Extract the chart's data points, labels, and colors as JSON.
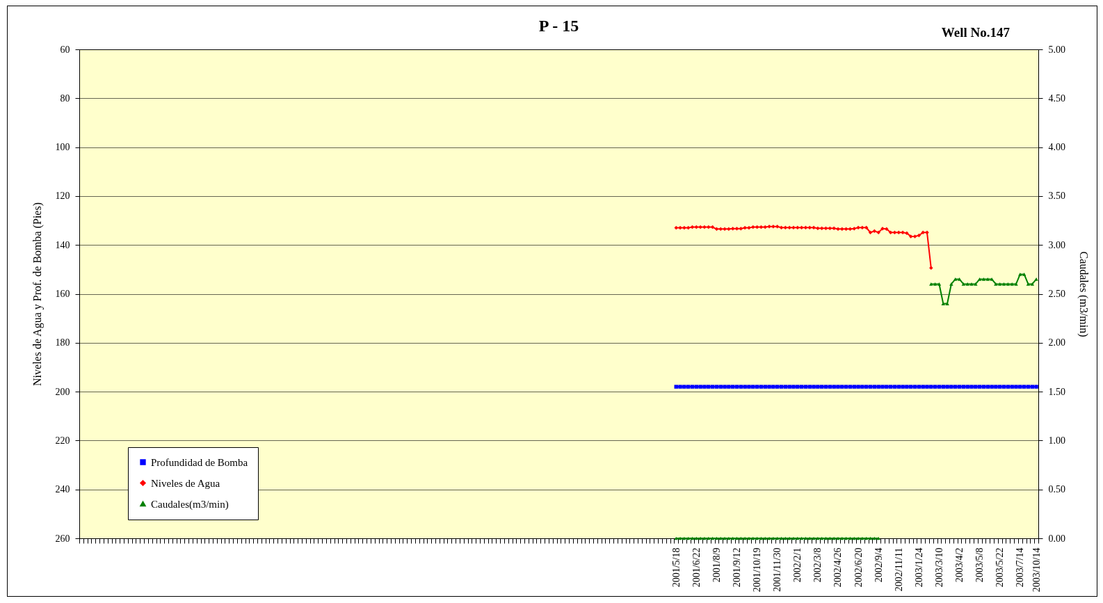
{
  "chart_data": {
    "type": "line",
    "title": "P - 15",
    "annotations": [
      "Well No.147"
    ],
    "ylabel": "Niveles de Agua y Prof. de Bomba (Pies)",
    "y2label": "Caudales (m3/min)",
    "ylim": [
      260,
      60
    ],
    "yticks": [
      60,
      80,
      100,
      120,
      140,
      160,
      180,
      200,
      220,
      240,
      260
    ],
    "y2lim": [
      0,
      5
    ],
    "y2ticks": [
      {
        "value": 0,
        "label": "0.00"
      },
      {
        "value": 0.5,
        "label": "0.50"
      },
      {
        "value": 1,
        "label": "1.00"
      },
      {
        "value": 1.5,
        "label": "1.50"
      },
      {
        "value": 2,
        "label": "2.00"
      },
      {
        "value": 2.5,
        "label": "2.50"
      },
      {
        "value": 3,
        "label": "3.00"
      },
      {
        "value": 3.5,
        "label": "3.50"
      },
      {
        "value": 4,
        "label": "4.00"
      },
      {
        "value": 4.5,
        "label": "4.50"
      },
      {
        "value": 5,
        "label": "5.00"
      }
    ],
    "grid": "y",
    "legend": "bottom left",
    "categories": [
      null,
      null,
      null,
      null,
      null,
      null,
      null,
      null,
      null,
      null,
      null,
      null,
      null,
      null,
      null,
      null,
      null,
      null,
      null,
      null,
      null,
      null,
      null,
      null,
      null,
      null,
      null,
      null,
      null,
      null,
      null,
      null,
      null,
      null,
      null,
      null,
      null,
      null,
      null,
      null,
      null,
      null,
      null,
      null,
      null,
      null,
      null,
      null,
      null,
      null,
      null,
      null,
      null,
      null,
      null,
      null,
      null,
      null,
      null,
      null,
      null,
      null,
      null,
      null,
      null,
      null,
      null,
      null,
      null,
      null,
      null,
      null,
      null,
      null,
      null,
      null,
      null,
      null,
      null,
      null,
      null,
      null,
      null,
      null,
      null,
      null,
      null,
      null,
      null,
      null,
      null,
      null,
      null,
      null,
      null,
      null,
      null,
      null,
      null,
      null,
      null,
      null,
      null,
      null,
      null,
      null,
      null,
      null,
      null,
      null,
      null,
      null,
      null,
      null,
      null,
      null,
      null,
      null,
      null,
      null,
      null,
      null,
      null,
      null,
      null,
      null,
      null,
      null,
      null,
      null,
      null,
      null,
      null,
      null,
      null,
      null,
      null,
      null,
      null,
      null,
      null,
      null,
      null,
      null,
      null,
      null,
      null,
      "2001/5/18",
      null,
      null,
      null,
      null,
      "2001/6/22",
      null,
      null,
      null,
      null,
      "2001/8/9",
      null,
      null,
      null,
      null,
      "2001/9/12",
      null,
      null,
      null,
      null,
      "2001/10/19",
      null,
      null,
      null,
      null,
      "2001/11/30",
      null,
      null,
      null,
      null,
      "2002/2/1",
      null,
      null,
      null,
      null,
      "2002/3/8",
      null,
      null,
      null,
      null,
      "2002/4/26",
      null,
      null,
      null,
      null,
      "2002/6/20",
      null,
      null,
      null,
      null,
      "2002/9/4",
      null,
      null,
      null,
      null,
      "2002/11/11",
      null,
      null,
      null,
      null,
      "2003/1/24",
      null,
      null,
      null,
      null,
      "2003/3/10",
      null,
      null,
      null,
      null,
      "2003/4/2",
      null,
      null,
      null,
      null,
      "2003/5/8",
      null,
      null,
      null,
      null,
      "2003/5/22",
      null,
      null,
      null,
      null,
      "2003/7/14",
      null,
      null,
      null,
      "2003/10/14"
    ],
    "series": [
      {
        "name": "Profundidad de Bomba",
        "color": "#0000ff",
        "marker": "square",
        "values": [
          null,
          null,
          null,
          null,
          null,
          null,
          null,
          null,
          null,
          null,
          null,
          null,
          null,
          null,
          null,
          null,
          null,
          null,
          null,
          null,
          null,
          null,
          null,
          null,
          null,
          null,
          null,
          null,
          null,
          null,
          null,
          null,
          null,
          null,
          null,
          null,
          null,
          null,
          null,
          null,
          null,
          null,
          null,
          null,
          null,
          null,
          null,
          null,
          null,
          null,
          null,
          null,
          null,
          null,
          null,
          null,
          null,
          null,
          null,
          null,
          null,
          null,
          null,
          null,
          null,
          null,
          null,
          null,
          null,
          null,
          null,
          null,
          null,
          null,
          null,
          null,
          null,
          null,
          null,
          null,
          null,
          null,
          null,
          null,
          null,
          null,
          null,
          null,
          null,
          null,
          null,
          null,
          null,
          null,
          null,
          null,
          null,
          null,
          null,
          null,
          null,
          null,
          null,
          null,
          null,
          null,
          null,
          null,
          null,
          null,
          null,
          null,
          null,
          null,
          null,
          null,
          null,
          null,
          null,
          null,
          null,
          null,
          null,
          null,
          null,
          null,
          null,
          null,
          null,
          null,
          null,
          null,
          null,
          null,
          null,
          null,
          null,
          null,
          null,
          null,
          null,
          null,
          null,
          null,
          null,
          null,
          null,
          198,
          198,
          198,
          198,
          198,
          198,
          198,
          198,
          198,
          198,
          198,
          198,
          198,
          198,
          198,
          198,
          198,
          198,
          198,
          198,
          198,
          198,
          198,
          198,
          198,
          198,
          198,
          198,
          198,
          198,
          198,
          198,
          198,
          198,
          198,
          198,
          198,
          198,
          198,
          198,
          198,
          198,
          198,
          198,
          198,
          198,
          198,
          198,
          198,
          198,
          198,
          198,
          198,
          198,
          198,
          198,
          198,
          198,
          198,
          198,
          198,
          198,
          198,
          198,
          198,
          198,
          198,
          198,
          198,
          198,
          198,
          198,
          198,
          198,
          198,
          198,
          198,
          198,
          198,
          198,
          198,
          198,
          198,
          198,
          198,
          198,
          198,
          198,
          198,
          198
        ]
      },
      {
        "name": "Niveles de Agua",
        "color": "#ff0000",
        "marker": "diamond",
        "values": [
          null,
          null,
          null,
          null,
          null,
          null,
          null,
          null,
          null,
          null,
          null,
          null,
          null,
          null,
          null,
          null,
          null,
          null,
          null,
          null,
          null,
          null,
          null,
          null,
          null,
          null,
          null,
          null,
          null,
          null,
          null,
          null,
          null,
          null,
          null,
          null,
          null,
          null,
          null,
          null,
          null,
          null,
          null,
          null,
          null,
          null,
          null,
          null,
          null,
          null,
          null,
          null,
          null,
          null,
          null,
          null,
          null,
          null,
          null,
          null,
          null,
          null,
          null,
          null,
          null,
          null,
          null,
          null,
          null,
          null,
          null,
          null,
          null,
          null,
          null,
          null,
          null,
          null,
          null,
          null,
          null,
          null,
          null,
          null,
          null,
          null,
          null,
          null,
          null,
          null,
          null,
          null,
          null,
          null,
          null,
          null,
          null,
          null,
          null,
          null,
          null,
          null,
          null,
          null,
          null,
          null,
          null,
          null,
          null,
          null,
          null,
          null,
          null,
          null,
          null,
          null,
          null,
          null,
          null,
          null,
          null,
          null,
          null,
          null,
          null,
          null,
          null,
          null,
          null,
          null,
          null,
          null,
          null,
          null,
          null,
          null,
          null,
          null,
          null,
          null,
          null,
          null,
          null,
          null,
          null,
          null,
          null,
          133.0,
          133.0,
          133.0,
          133.0,
          132.7,
          132.7,
          132.7,
          132.7,
          132.7,
          132.7,
          133.5,
          133.5,
          133.5,
          133.5,
          133.3,
          133.3,
          133.3,
          133.0,
          133.0,
          132.7,
          132.7,
          132.7,
          132.7,
          132.5,
          132.5,
          132.5,
          132.9,
          132.9,
          132.9,
          132.9,
          132.9,
          132.9,
          132.9,
          132.9,
          132.9,
          133.2,
          133.2,
          133.2,
          133.2,
          133.2,
          133.5,
          133.5,
          133.5,
          133.5,
          133.3,
          132.9,
          132.9,
          132.9,
          134.9,
          134.3,
          134.9,
          133.3,
          133.5,
          134.9,
          134.9,
          134.9,
          134.9,
          135.2,
          136.5,
          136.5,
          136.1,
          134.9,
          134.9,
          149.4,
          null,
          null,
          null,
          null,
          null,
          null,
          null,
          null,
          null,
          null,
          null,
          null,
          null,
          null,
          null,
          null,
          null,
          null,
          null,
          null,
          null,
          null,
          null,
          null,
          null,
          null
        ]
      },
      {
        "name": "Caudales(m3/min)",
        "color": "#008000",
        "marker": "triangle",
        "axis": "y2",
        "values": [
          null,
          null,
          null,
          null,
          null,
          null,
          null,
          null,
          null,
          null,
          null,
          null,
          null,
          null,
          null,
          null,
          null,
          null,
          null,
          null,
          null,
          null,
          null,
          null,
          null,
          null,
          null,
          null,
          null,
          null,
          null,
          null,
          null,
          null,
          null,
          null,
          null,
          null,
          null,
          null,
          null,
          null,
          null,
          null,
          null,
          null,
          null,
          null,
          null,
          null,
          null,
          null,
          null,
          null,
          null,
          null,
          null,
          null,
          null,
          null,
          null,
          null,
          null,
          null,
          null,
          null,
          null,
          null,
          null,
          null,
          null,
          null,
          null,
          null,
          null,
          null,
          null,
          null,
          null,
          null,
          null,
          null,
          null,
          null,
          null,
          null,
          null,
          null,
          null,
          null,
          null,
          null,
          null,
          null,
          null,
          null,
          null,
          null,
          null,
          null,
          null,
          null,
          null,
          null,
          null,
          null,
          null,
          null,
          null,
          null,
          null,
          null,
          null,
          null,
          null,
          null,
          null,
          null,
          null,
          null,
          null,
          null,
          null,
          null,
          null,
          null,
          null,
          null,
          null,
          null,
          null,
          null,
          null,
          null,
          null,
          null,
          null,
          null,
          null,
          null,
          null,
          null,
          null,
          null,
          null,
          null,
          null,
          0,
          0,
          0,
          0,
          0,
          0,
          0,
          0,
          0,
          0,
          0,
          0,
          0,
          0,
          0,
          0,
          0,
          0,
          0,
          0,
          0,
          0,
          0,
          0,
          0,
          0,
          0,
          0,
          0,
          0,
          0,
          0,
          0,
          0,
          0,
          0,
          0,
          0,
          0,
          0,
          0,
          0,
          0,
          0,
          0,
          0,
          0,
          0,
          0,
          0,
          0,
          null,
          null,
          null,
          null,
          null,
          null,
          null,
          null,
          null,
          null,
          null,
          null,
          2.6,
          2.6,
          2.6,
          2.4,
          2.4,
          2.6,
          2.65,
          2.65,
          2.6,
          2.6,
          2.6,
          2.6,
          2.65,
          2.65,
          2.65,
          2.65,
          2.6,
          2.6,
          2.6,
          2.6,
          2.6,
          2.6,
          2.7,
          2.7,
          2.6,
          2.6,
          2.65
        ]
      }
    ]
  }
}
